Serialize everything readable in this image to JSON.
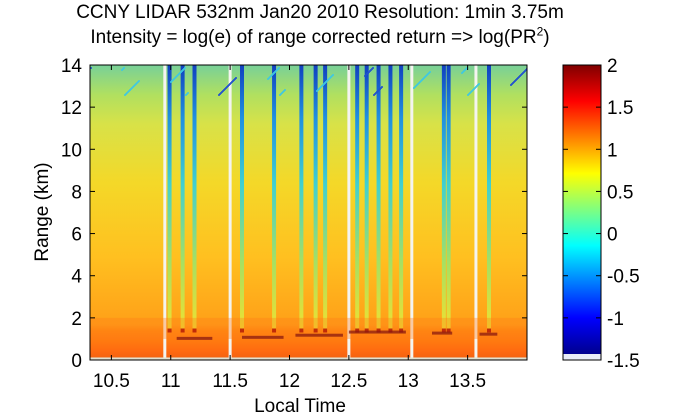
{
  "chart_data": {
    "type": "heatmap",
    "title": "CCNY LIDAR 532nm Jan20 2010 Resolution: 1min 3.75m",
    "subtitle_prefix": "Intensity = log(e) of range corrected return => log(PR",
    "subtitle_superscript": "2",
    "subtitle_suffix": ")",
    "xlabel": "Local Time",
    "ylabel": "Range (km)",
    "xlim": [
      10.32,
      14.0
    ],
    "ylim": [
      0,
      14
    ],
    "x_ticks": [
      10.5,
      11,
      11.5,
      12,
      12.5,
      13,
      13.5
    ],
    "x_tick_labels": [
      "10.5",
      "11",
      "11.5",
      "12",
      "12.5",
      "13",
      "13.5"
    ],
    "y_ticks": [
      0,
      2,
      4,
      6,
      8,
      10,
      12,
      14
    ],
    "y_tick_labels": [
      "0",
      "2",
      "4",
      "6",
      "8",
      "10",
      "12",
      "14"
    ],
    "colorbar": {
      "range": [
        -1.5,
        2
      ],
      "ticks": [
        -1.5,
        -1,
        -0.5,
        0,
        0.5,
        1,
        1.5,
        2
      ],
      "tick_labels": [
        "-1.5",
        "-1",
        "-0.5",
        "0",
        "0.5",
        "1",
        "1.5",
        "2"
      ],
      "colormap": "jet"
    },
    "data_gaps_local_time": [
      10.95,
      11.5,
      12.5,
      13.03,
      13.57
    ],
    "layers": [
      {
        "name": "boundary layer top",
        "range_km": 1.0
      },
      {
        "name": "gradient fade",
        "range_km": 14.0
      }
    ],
    "cloud_columns_local_time": [
      10.99,
      11.1,
      11.2,
      11.6,
      11.87,
      12.1,
      12.22,
      12.3,
      12.57,
      12.65,
      12.75,
      12.85,
      12.94,
      13.3,
      13.34,
      13.68
    ],
    "grid": false
  }
}
